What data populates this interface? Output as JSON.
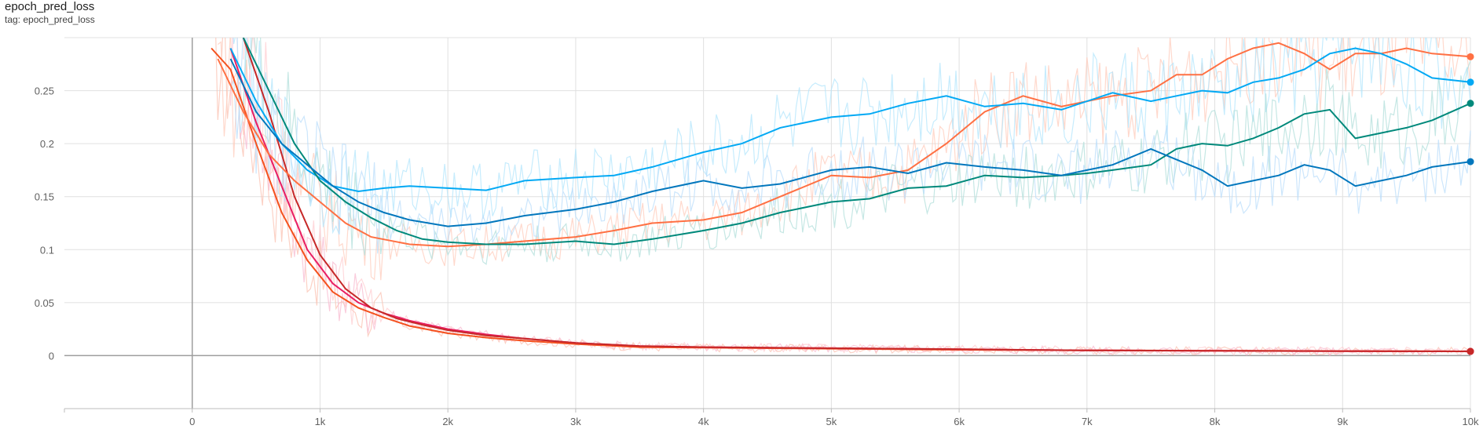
{
  "card": {
    "title": "epoch_pred_loss",
    "tag": "tag: epoch_pred_loss"
  },
  "chart_data": {
    "type": "line",
    "title": "epoch_pred_loss",
    "xlabel": "",
    "ylabel": "",
    "xlim": [
      -1000,
      10000
    ],
    "ylim": [
      -0.05,
      0.3
    ],
    "x_ticks": [
      "0",
      "1k",
      "2k",
      "3k",
      "4k",
      "5k",
      "6k",
      "7k",
      "8k",
      "9k",
      "10k"
    ],
    "y_ticks": [
      "0",
      "0.05",
      "0.1",
      "0.15",
      "0.2",
      "0.25"
    ],
    "grid": true,
    "smoothing": true,
    "series": [
      {
        "color": "#f4511e",
        "raw_color": "#fbc2b2",
        "x": [
          150,
          300,
          500,
          700,
          900,
          1100,
          1300,
          1500,
          1700,
          2000,
          2300,
          2600,
          3000,
          3500,
          4000,
          4500,
          5000,
          5500,
          6000,
          6500,
          7000,
          7500,
          8000,
          8500,
          9000,
          9500,
          10000
        ],
        "y": [
          0.29,
          0.27,
          0.2,
          0.135,
          0.09,
          0.06,
          0.045,
          0.036,
          0.028,
          0.021,
          0.017,
          0.014,
          0.011,
          0.008,
          0.0075,
          0.007,
          0.0065,
          0.006,
          0.0055,
          0.0052,
          0.005,
          0.0048,
          0.0046,
          0.0045,
          0.0044,
          0.0042,
          0.004
        ]
      },
      {
        "color": "#e91e63",
        "raw_color": "#f8bbd0",
        "x": [
          300,
          500,
          700,
          900,
          1100,
          1300,
          1500,
          1700,
          2000,
          2300,
          2600,
          3000,
          3500,
          4000,
          5000,
          6000,
          7000,
          8000,
          9000,
          10000
        ],
        "y": [
          0.29,
          0.22,
          0.16,
          0.1,
          0.068,
          0.05,
          0.04,
          0.033,
          0.025,
          0.02,
          0.016,
          0.012,
          0.009,
          0.008,
          0.007,
          0.006,
          0.005,
          0.0045,
          0.0042,
          0.004
        ]
      },
      {
        "color": "#c62828",
        "raw_color": "#ffcdd2",
        "x": [
          400,
          600,
          800,
          1000,
          1200,
          1400,
          1600,
          1800,
          2000,
          2300,
          2600,
          3000,
          3500,
          4000,
          5000,
          6000,
          7000,
          8000,
          9000,
          10000
        ],
        "y": [
          0.3,
          0.23,
          0.15,
          0.095,
          0.063,
          0.045,
          0.035,
          0.029,
          0.024,
          0.019,
          0.016,
          0.012,
          0.009,
          0.008,
          0.007,
          0.006,
          0.005,
          0.0045,
          0.0042,
          0.004
        ]
      },
      {
        "color": "#ff7043",
        "raw_color": "#ffccbc",
        "x": [
          200,
          400,
          600,
          800,
          1000,
          1200,
          1400,
          1700,
          2000,
          2300,
          2600,
          3000,
          3300,
          3600,
          4000,
          4300,
          4600,
          5000,
          5300,
          5600,
          5900,
          6200,
          6500,
          6800,
          7000,
          7200,
          7500,
          7700,
          7900,
          8100,
          8300,
          8500,
          8700,
          8900,
          9100,
          9300,
          9500,
          9700,
          10000
        ],
        "y": [
          0.28,
          0.23,
          0.19,
          0.165,
          0.145,
          0.125,
          0.112,
          0.105,
          0.103,
          0.105,
          0.108,
          0.112,
          0.118,
          0.125,
          0.128,
          0.135,
          0.15,
          0.17,
          0.168,
          0.175,
          0.2,
          0.23,
          0.245,
          0.235,
          0.24,
          0.245,
          0.25,
          0.265,
          0.265,
          0.28,
          0.29,
          0.295,
          0.285,
          0.27,
          0.285,
          0.285,
          0.29,
          0.285,
          0.282
        ]
      },
      {
        "color": "#03a9f4",
        "raw_color": "#b3e5fc",
        "x": [
          300,
          500,
          700,
          900,
          1100,
          1300,
          1500,
          1700,
          2000,
          2300,
          2600,
          3000,
          3300,
          3600,
          4000,
          4300,
          4600,
          5000,
          5300,
          5600,
          5900,
          6200,
          6500,
          6800,
          7000,
          7200,
          7500,
          7700,
          7900,
          8100,
          8300,
          8500,
          8700,
          8900,
          9100,
          9300,
          9500,
          9700,
          10000
        ],
        "y": [
          0.29,
          0.24,
          0.2,
          0.175,
          0.16,
          0.155,
          0.158,
          0.16,
          0.158,
          0.156,
          0.165,
          0.168,
          0.17,
          0.178,
          0.192,
          0.2,
          0.215,
          0.225,
          0.228,
          0.238,
          0.245,
          0.235,
          0.238,
          0.232,
          0.24,
          0.248,
          0.24,
          0.245,
          0.25,
          0.248,
          0.258,
          0.262,
          0.27,
          0.285,
          0.29,
          0.285,
          0.275,
          0.262,
          0.258
        ]
      },
      {
        "color": "#00897b",
        "raw_color": "#b2dfdb",
        "x": [
          400,
          600,
          800,
          1000,
          1200,
          1400,
          1600,
          1800,
          2000,
          2300,
          2600,
          3000,
          3300,
          3600,
          4000,
          4300,
          4600,
          5000,
          5300,
          5600,
          5900,
          6200,
          6500,
          6800,
          7000,
          7200,
          7500,
          7700,
          7900,
          8100,
          8300,
          8500,
          8700,
          8900,
          9100,
          9300,
          9500,
          9700,
          10000
        ],
        "y": [
          0.3,
          0.25,
          0.2,
          0.165,
          0.145,
          0.13,
          0.118,
          0.11,
          0.107,
          0.105,
          0.105,
          0.108,
          0.105,
          0.11,
          0.118,
          0.125,
          0.135,
          0.145,
          0.148,
          0.158,
          0.16,
          0.17,
          0.168,
          0.17,
          0.172,
          0.175,
          0.18,
          0.195,
          0.2,
          0.198,
          0.205,
          0.215,
          0.228,
          0.232,
          0.205,
          0.21,
          0.215,
          0.222,
          0.238
        ]
      },
      {
        "color": "#0277bd",
        "raw_color": "#bbdefb",
        "x": [
          300,
          500,
          700,
          900,
          1100,
          1300,
          1500,
          1700,
          2000,
          2300,
          2600,
          3000,
          3300,
          3600,
          4000,
          4300,
          4600,
          5000,
          5300,
          5600,
          5900,
          6200,
          6500,
          6800,
          7000,
          7200,
          7500,
          7700,
          7900,
          8100,
          8300,
          8500,
          8700,
          8900,
          9100,
          9300,
          9500,
          9700,
          10000
        ],
        "y": [
          0.28,
          0.23,
          0.2,
          0.18,
          0.16,
          0.145,
          0.135,
          0.128,
          0.122,
          0.125,
          0.132,
          0.138,
          0.145,
          0.155,
          0.165,
          0.158,
          0.162,
          0.175,
          0.178,
          0.172,
          0.182,
          0.178,
          0.175,
          0.17,
          0.175,
          0.18,
          0.195,
          0.185,
          0.175,
          0.16,
          0.165,
          0.17,
          0.18,
          0.175,
          0.16,
          0.165,
          0.17,
          0.178,
          0.183
        ]
      }
    ]
  }
}
